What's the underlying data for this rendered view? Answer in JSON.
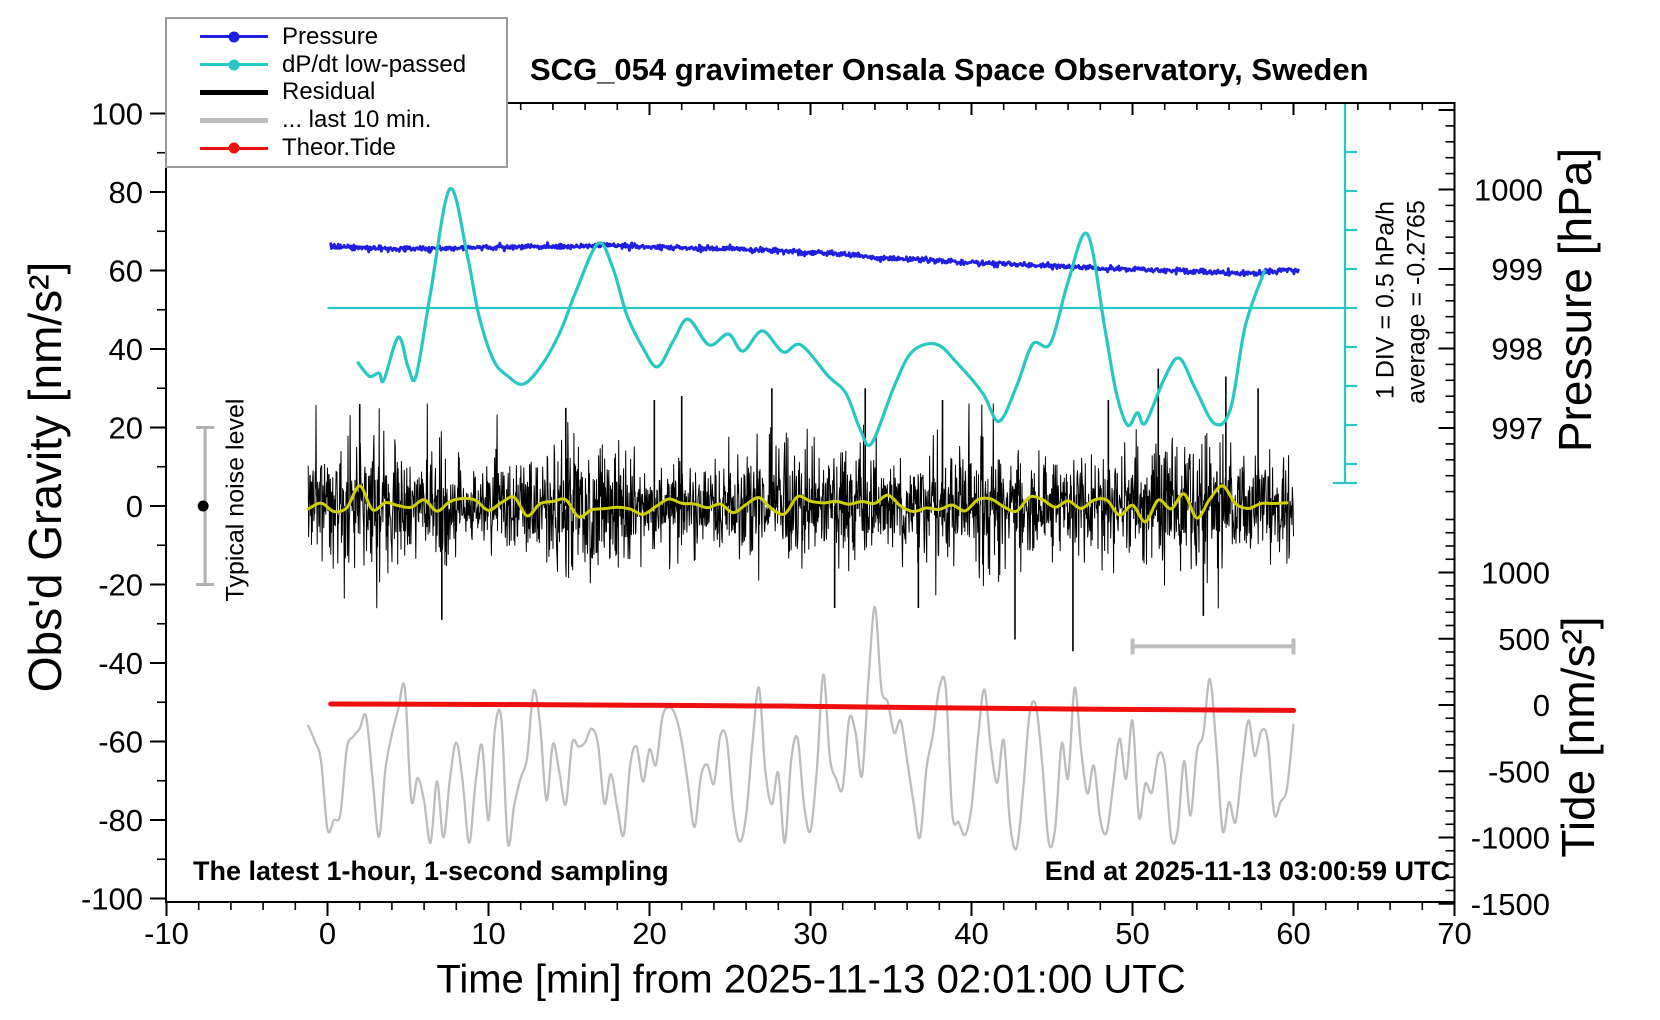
{
  "title": "SCG_054 gravimeter Onsala Space Observatory, Sweden",
  "legend": {
    "position": "top-left",
    "items": [
      {
        "label": "Pressure",
        "color": "#1f1fdf",
        "style": "line-dot"
      },
      {
        "label": "dP/dt low-passed",
        "color": "#27c7c3",
        "style": "line-dot"
      },
      {
        "label": "Residual",
        "color": "#000000",
        "style": "thick-line"
      },
      {
        "label": "... last 10 min.",
        "color": "#bdbdbd",
        "style": "thick-line"
      },
      {
        "label": "Theor.Tide",
        "color": "#ee0f0f",
        "style": "line-dot"
      }
    ]
  },
  "annotations": {
    "div_scale": "1 DIV = 0.5 hPa/h",
    "average": "average = -0.2765",
    "noise": "Typical noise level",
    "sampling": "The latest 1-hour, 1-second sampling",
    "end_time": "End at 2025-11-13 03:00:59 UTC"
  },
  "axes": {
    "x_label": "Time [min] from 2025-11-13 02:01:00 UTC",
    "gravity_label": "Obs'd Gravity [nm/s²]",
    "pressure_label": "Pressure [hPa]",
    "tide_label": "Tide [nm/s²]"
  },
  "chart_data": {
    "type": "line",
    "title": "SCG_054 gravimeter Onsala Space Observatory, Sweden",
    "xlabel": "Time [min] from 2025-11-13 02:01:00 UTC",
    "x_axis": {
      "range": [
        -10,
        70
      ],
      "major_ticks": [
        -10,
        0,
        10,
        20,
        30,
        40,
        50,
        60,
        70
      ],
      "minor_step": 2
    },
    "gravity_axis": {
      "label": "Obs'd Gravity [nm/s²]",
      "range": [
        -100,
        100
      ],
      "major_ticks": [
        -100,
        -80,
        -60,
        -40,
        -20,
        0,
        20,
        40,
        60,
        80,
        100
      ],
      "minor_step": 10
    },
    "pressure_axis": {
      "label": "Pressure [hPa]",
      "tick_labels": [
        1000,
        999,
        998,
        997
      ],
      "minor_step": 0.2
    },
    "tide_axis": {
      "label": "Tide [nm/s²]",
      "tick_labels": [
        1000,
        500,
        0,
        -500,
        -1000,
        -1500
      ],
      "minor_step": 100
    },
    "grid": false,
    "series": {
      "pressure_hpa": {
        "name": "Pressure",
        "color": "#1f1fdf",
        "unit": "hPa",
        "noise_std_hpa": 0.016,
        "points": [
          [
            0.2,
            999.28
          ],
          [
            3,
            999.26
          ],
          [
            6,
            999.25
          ],
          [
            9,
            999.27
          ],
          [
            12,
            999.28
          ],
          [
            15,
            999.28
          ],
          [
            17,
            999.3
          ],
          [
            20,
            999.28
          ],
          [
            23,
            999.26
          ],
          [
            26,
            999.25
          ],
          [
            29,
            999.22
          ],
          [
            32,
            999.19
          ],
          [
            34,
            999.15
          ],
          [
            36,
            999.13
          ],
          [
            38,
            999.1
          ],
          [
            40,
            999.08
          ],
          [
            42,
            999.06
          ],
          [
            44,
            999.05
          ],
          [
            46,
            999.03
          ],
          [
            48,
            999.01
          ],
          [
            50,
            999.0
          ],
          [
            52,
            998.98
          ],
          [
            54,
            998.97
          ],
          [
            56,
            998.95
          ],
          [
            57.5,
            998.94
          ],
          [
            58.6,
            998.97
          ],
          [
            59.5,
            998.99
          ],
          [
            60.3,
            998.98
          ]
        ]
      },
      "dpdt_hpa_per_h": {
        "name": "dP/dt low-passed",
        "color": "#27c7c3",
        "unit": "hPa/h",
        "average": -0.2765,
        "div_value": 0.5,
        "points": [
          [
            1.9,
            -0.98
          ],
          [
            2.6,
            -1.15
          ],
          [
            3.2,
            -1.11
          ],
          [
            3.5,
            -1.2
          ],
          [
            4.4,
            -0.65
          ],
          [
            5.0,
            -1.03
          ],
          [
            5.5,
            -1.15
          ],
          [
            6.4,
            -0.08
          ],
          [
            7.6,
            1.25
          ],
          [
            8.7,
            0.38
          ],
          [
            9.4,
            -0.37
          ],
          [
            10.3,
            -0.94
          ],
          [
            11.2,
            -1.15
          ],
          [
            12.2,
            -1.25
          ],
          [
            13.4,
            -0.98
          ],
          [
            14.5,
            -0.56
          ],
          [
            15.4,
            -0.08
          ],
          [
            16.8,
            0.55
          ],
          [
            17.7,
            0.25
          ],
          [
            18.6,
            -0.37
          ],
          [
            19.6,
            -0.79
          ],
          [
            20.5,
            -1.03
          ],
          [
            21.5,
            -0.69
          ],
          [
            22.4,
            -0.42
          ],
          [
            23.7,
            -0.75
          ],
          [
            24.9,
            -0.61
          ],
          [
            25.8,
            -0.83
          ],
          [
            27.0,
            -0.57
          ],
          [
            28.3,
            -0.84
          ],
          [
            29.4,
            -0.75
          ],
          [
            31.1,
            -1.15
          ],
          [
            32.2,
            -1.37
          ],
          [
            33.1,
            -1.84
          ],
          [
            33.8,
            -2.01
          ],
          [
            35.2,
            -1.28
          ],
          [
            36.3,
            -0.84
          ],
          [
            37.8,
            -0.74
          ],
          [
            39.1,
            -0.98
          ],
          [
            40.7,
            -1.37
          ],
          [
            41.7,
            -1.73
          ],
          [
            42.8,
            -1.28
          ],
          [
            43.8,
            -0.74
          ],
          [
            44.9,
            -0.73
          ],
          [
            46.0,
            0.06
          ],
          [
            47.2,
            0.67
          ],
          [
            48.3,
            -0.56
          ],
          [
            49.0,
            -1.37
          ],
          [
            49.7,
            -1.78
          ],
          [
            50.3,
            -1.62
          ],
          [
            50.8,
            -1.75
          ],
          [
            52.0,
            -1.17
          ],
          [
            52.9,
            -0.92
          ],
          [
            53.9,
            -1.31
          ],
          [
            55.1,
            -1.76
          ],
          [
            56.1,
            -1.56
          ],
          [
            57.0,
            -0.51
          ],
          [
            58.2,
            0.2
          ]
        ]
      },
      "residual": {
        "name": "Residual",
        "color": "#000000",
        "unit": "nm/s²",
        "t_start": -1.2,
        "t_end": 60,
        "n": 2400,
        "mean": 0,
        "std": 6.8,
        "heavy_tail_prob": 0.035,
        "heavy_tail_mult": 1.8,
        "clip": 26,
        "spikes": [
          [
            2.0,
            26
          ],
          [
            7.1,
            -29
          ],
          [
            14.8,
            25
          ],
          [
            20.3,
            27
          ],
          [
            22.0,
            28
          ],
          [
            27.6,
            30
          ],
          [
            31.5,
            -26
          ],
          [
            33.4,
            30
          ],
          [
            36.7,
            -26
          ],
          [
            38.2,
            27
          ],
          [
            42.7,
            -34
          ],
          [
            46.3,
            -37
          ],
          [
            48.5,
            27
          ],
          [
            51.6,
            35
          ],
          [
            54.4,
            -28
          ],
          [
            55.8,
            33
          ],
          [
            57.8,
            30
          ]
        ]
      },
      "residual_smoothed": {
        "name": "Residual smoothed",
        "color": "#cfcf00",
        "mean": 0,
        "amplitude": 1.6
      },
      "last10": {
        "name": "... last 10 min.",
        "color": "#bdbdbd",
        "unit": "nm/s² (tide scale)",
        "t_start": -1.2,
        "t_end": 60,
        "center": -430,
        "swing": 320,
        "noise": 180,
        "clip_low": -1040,
        "clip_high": 130,
        "spikes": [
          [
            30.7,
            230
          ],
          [
            33.9,
            740
          ],
          [
            55.3,
            350
          ]
        ],
        "dips": [
          [
            7.3,
            -1000
          ],
          [
            18.5,
            -980
          ],
          [
            25.6,
            -1030
          ],
          [
            30.2,
            -950
          ],
          [
            36.6,
            -1000
          ],
          [
            39.6,
            -980
          ],
          [
            42.7,
            -1080
          ],
          [
            48.2,
            -960
          ],
          [
            52.4,
            -1000
          ],
          [
            55.6,
            -950
          ]
        ]
      },
      "theor_tide": {
        "name": "Theor.Tide",
        "color": "#ee0f0f",
        "unit": "nm/s² (tide scale)",
        "points": [
          [
            0.2,
            8
          ],
          [
            10,
            4
          ],
          [
            20,
            -2
          ],
          [
            28,
            -8
          ],
          [
            34,
            -16
          ],
          [
            40,
            -24
          ],
          [
            46,
            -30
          ],
          [
            52,
            -35
          ],
          [
            60,
            -41
          ]
        ]
      }
    },
    "noise_level_bar": {
      "t": -7.6,
      "center_gravity": 0,
      "half_range_gravity": 20,
      "color": "#b0b0b0"
    },
    "last10_bar": {
      "t_start": 50,
      "t_end": 60,
      "gravity_y": -35,
      "color": "#bdbdbd"
    },
    "div_bar": {
      "ticks": 9,
      "color": "#27c7c3"
    }
  }
}
